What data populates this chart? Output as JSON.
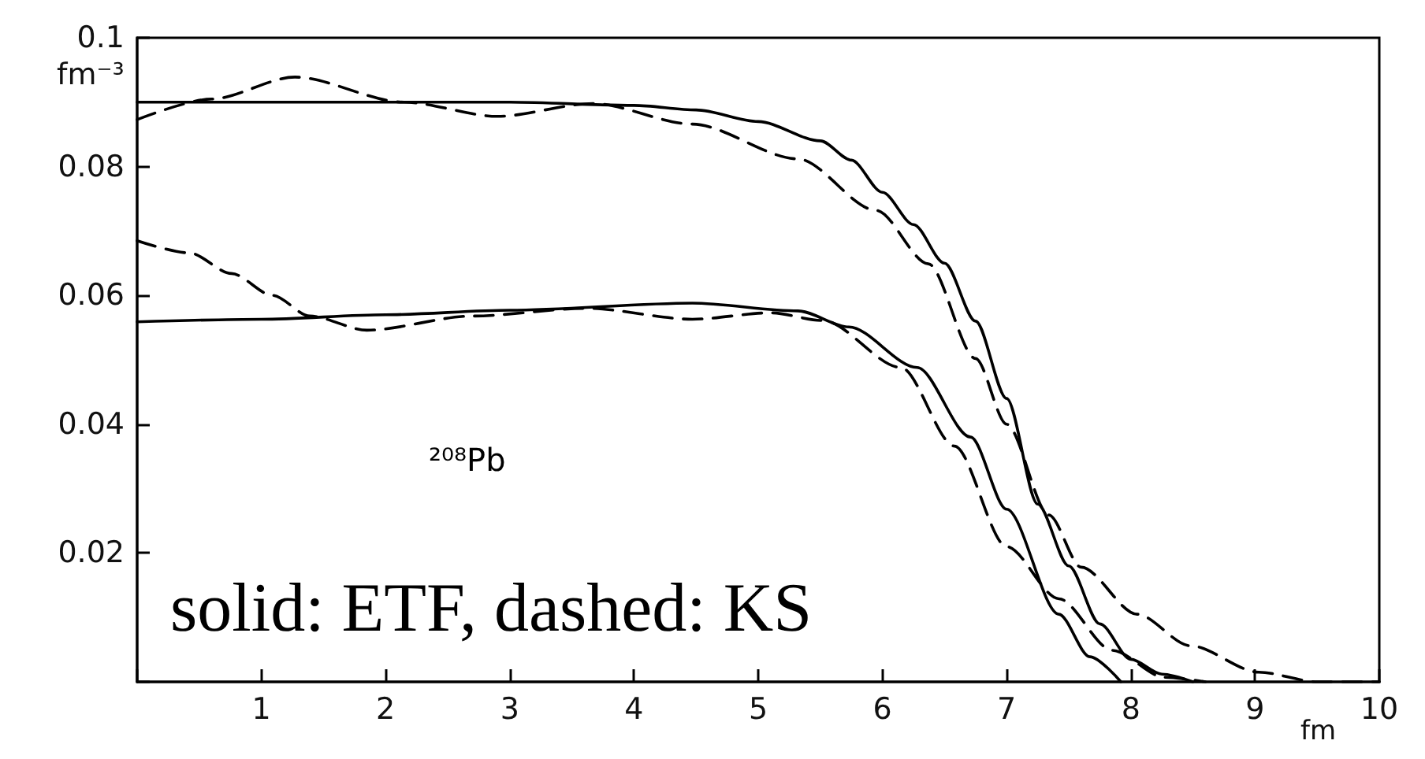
{
  "chart_data": {
    "type": "line",
    "xlabel": "fm",
    "ylabel": "fm⁻³",
    "annotations": [
      "²⁰⁸Pb",
      "solid: ETF, dashed: KS"
    ],
    "xlim": [
      0,
      10
    ],
    "ylim": [
      0,
      0.1
    ],
    "xticks": [
      {
        "value": 0,
        "label": null
      },
      1,
      2,
      3,
      4,
      5,
      6,
      7,
      8,
      9,
      10
    ],
    "yticks": [
      {
        "value": 0,
        "label": null
      },
      0.02,
      0.04,
      0.06,
      0.08,
      0.1
    ],
    "grid": false,
    "series": [
      {
        "color": "#000000",
        "line_style": "solid",
        "x": [
          0,
          1,
          2,
          3,
          4,
          4.5,
          5,
          5.5,
          5.75,
          6,
          6.25,
          6.5,
          6.75,
          7,
          7.25,
          7.5,
          7.75,
          8,
          8.25,
          8.5
        ],
        "values": [
          0.09,
          0.09,
          0.09,
          0.09,
          0.0895,
          0.0888,
          0.087,
          0.084,
          0.081,
          0.076,
          0.071,
          0.065,
          0.056,
          0.044,
          0.0276,
          0.018,
          0.009,
          0.0035,
          0.0012,
          0
        ]
      },
      {
        "color": "#000000",
        "line_style": "dashed",
        "x": [
          0,
          0.6,
          1.27,
          2.15,
          2.9,
          3.67,
          4.47,
          5.32,
          5.95,
          6.37,
          6.75,
          7.0,
          7.34,
          7.6,
          8.05,
          8.48,
          9.03,
          9.5,
          10
        ],
        "values": [
          0.0873,
          0.0905,
          0.0939,
          0.09,
          0.0878,
          0.0898,
          0.0866,
          0.0812,
          0.0732,
          0.0649,
          0.0502,
          0.04,
          0.0259,
          0.0178,
          0.0105,
          0.0056,
          0.0015,
          0,
          0
        ]
      },
      {
        "color": "#000000",
        "line_style": "solid",
        "x": [
          0,
          1,
          2,
          3,
          4.47,
          5.32,
          5.73,
          6.28,
          6.71,
          7.0,
          7.42,
          7.67,
          7.92
        ],
        "values": [
          0.0559,
          0.0563,
          0.057,
          0.0577,
          0.0588,
          0.0576,
          0.0551,
          0.0488,
          0.038,
          0.0268,
          0.0105,
          0.0039,
          0
        ]
      },
      {
        "color": "#000000",
        "line_style": "dashed",
        "x": [
          0,
          0.42,
          0.76,
          1.09,
          1.39,
          1.85,
          2.7,
          3.62,
          4.47,
          5.1,
          5.52,
          6.15,
          6.58,
          7.0,
          7.42,
          7.85,
          8.27,
          8.6
        ],
        "values": [
          0.0685,
          0.0666,
          0.0634,
          0.06,
          0.0568,
          0.0546,
          0.0568,
          0.058,
          0.0563,
          0.0573,
          0.0561,
          0.0488,
          0.0366,
          0.021,
          0.0129,
          0.0049,
          0.0007,
          0
        ]
      }
    ]
  }
}
